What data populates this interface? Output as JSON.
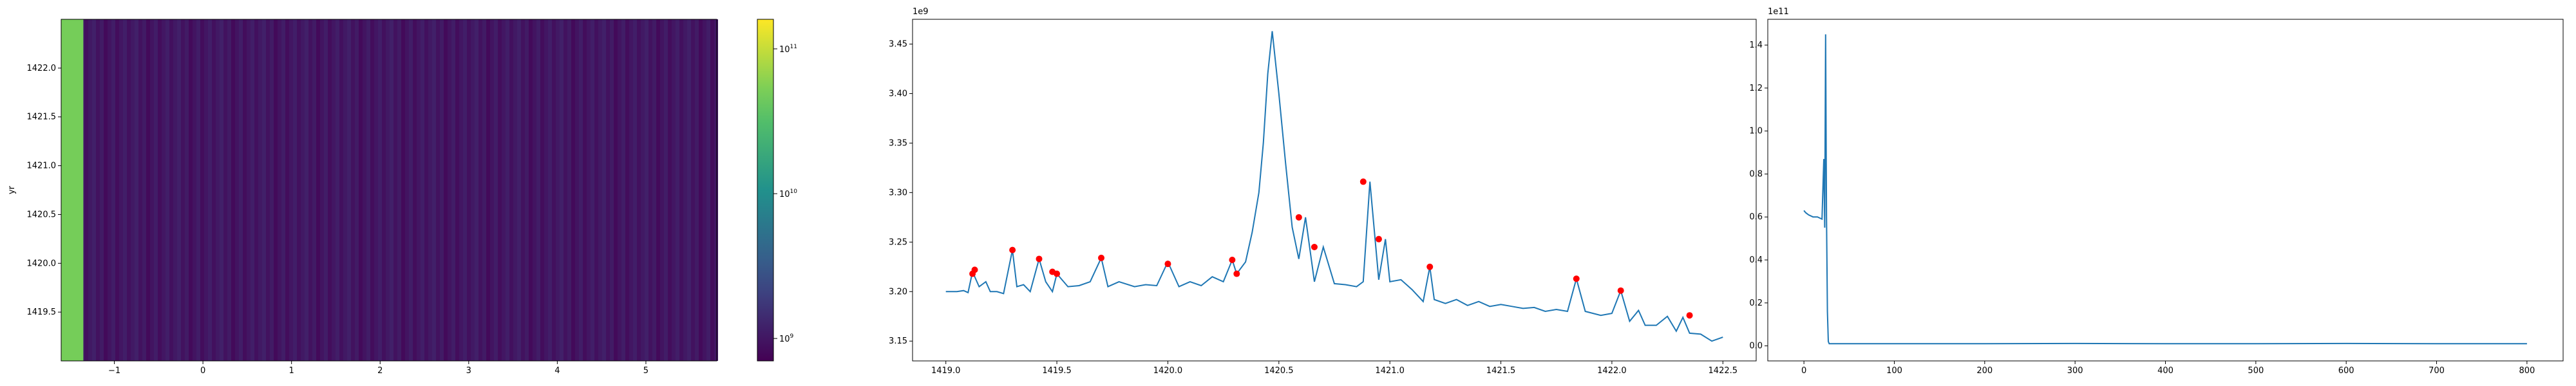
{
  "chart_data": [
    {
      "type": "heatmap",
      "xlabel": "",
      "ylabel": "yr",
      "xlim": [
        -1.6,
        5.8
      ],
      "ylim": [
        1419.0,
        1422.5
      ],
      "xticks": [
        "−1",
        "0",
        "1",
        "2",
        "3",
        "4",
        "5"
      ],
      "yticks": [
        "1419.5",
        "1420.0",
        "1420.5",
        "1421.0",
        "1421.5",
        "1422.0"
      ],
      "colorbar": {
        "scale": "log",
        "range": [
          700000000.0,
          160000000000.0
        ],
        "ticks": [
          {
            "base": "10",
            "exp": "9"
          },
          {
            "base": "10",
            "exp": "10"
          },
          {
            "base": "10",
            "exp": "11"
          }
        ]
      },
      "bright_column": {
        "x_range": [
          -1.6,
          -1.35
        ],
        "value": 50000000000.0
      },
      "background_value": 1000000000.0
    },
    {
      "type": "line",
      "title": "",
      "offset_label": "1e9",
      "xlabel": "",
      "ylabel": "",
      "xlim": [
        1418.85,
        1422.65
      ],
      "ylim": [
        3.13,
        3.475
      ],
      "xticks": [
        "1419.0",
        "1419.5",
        "1420.0",
        "1420.5",
        "1421.0",
        "1421.5",
        "1422.0",
        "1422.5"
      ],
      "yticks": [
        "3.15",
        "3.20",
        "3.25",
        "3.30",
        "3.35",
        "3.40",
        "3.45"
      ],
      "series": [
        {
          "color": "#1f77b4",
          "x": [
            1419.0,
            1419.05,
            1419.08,
            1419.1,
            1419.12,
            1419.15,
            1419.18,
            1419.2,
            1419.23,
            1419.26,
            1419.3,
            1419.32,
            1419.35,
            1419.38,
            1419.42,
            1419.45,
            1419.48,
            1419.5,
            1419.55,
            1419.6,
            1419.65,
            1419.7,
            1419.73,
            1419.78,
            1419.85,
            1419.9,
            1419.95,
            1420.0,
            1420.05,
            1420.1,
            1420.15,
            1420.2,
            1420.25,
            1420.29,
            1420.31,
            1420.35,
            1420.38,
            1420.41,
            1420.43,
            1420.45,
            1420.47,
            1420.5,
            1420.53,
            1420.56,
            1420.59,
            1420.62,
            1420.66,
            1420.7,
            1420.75,
            1420.8,
            1420.85,
            1420.88,
            1420.91,
            1420.95,
            1420.98,
            1421.0,
            1421.05,
            1421.1,
            1421.15,
            1421.18,
            1421.2,
            1421.25,
            1421.3,
            1421.35,
            1421.4,
            1421.45,
            1421.5,
            1421.55,
            1421.6,
            1421.65,
            1421.7,
            1421.75,
            1421.8,
            1421.84,
            1421.88,
            1421.95,
            1422.0,
            1422.04,
            1422.08,
            1422.12,
            1422.15,
            1422.2,
            1422.25,
            1422.29,
            1422.32,
            1422.35,
            1422.4,
            1422.45,
            1422.5
          ],
          "y": [
            3.2,
            3.2,
            3.201,
            3.199,
            3.22,
            3.205,
            3.21,
            3.2,
            3.2,
            3.198,
            3.242,
            3.205,
            3.207,
            3.2,
            3.233,
            3.21,
            3.2,
            3.218,
            3.205,
            3.206,
            3.21,
            3.234,
            3.205,
            3.21,
            3.205,
            3.207,
            3.206,
            3.23,
            3.205,
            3.21,
            3.206,
            3.215,
            3.21,
            3.232,
            3.218,
            3.23,
            3.26,
            3.3,
            3.35,
            3.42,
            3.463,
            3.4,
            3.33,
            3.265,
            3.233,
            3.275,
            3.21,
            3.245,
            3.208,
            3.207,
            3.205,
            3.21,
            3.311,
            3.212,
            3.253,
            3.21,
            3.212,
            3.202,
            3.19,
            3.225,
            3.192,
            3.188,
            3.192,
            3.186,
            3.19,
            3.185,
            3.187,
            3.185,
            3.183,
            3.184,
            3.18,
            3.182,
            3.18,
            3.213,
            3.18,
            3.176,
            3.178,
            3.201,
            3.17,
            3.181,
            3.166,
            3.166,
            3.175,
            3.16,
            3.174,
            3.158,
            3.157,
            3.15,
            3.154
          ]
        }
      ],
      "peaks": {
        "color": "#ff0000",
        "x": [
          1419.12,
          1419.13,
          1419.3,
          1419.42,
          1419.48,
          1419.5,
          1419.7,
          1420.0,
          1420.29,
          1420.31,
          1420.59,
          1420.66,
          1420.88,
          1420.95,
          1421.18,
          1421.84,
          1422.04,
          1422.35
        ],
        "y": [
          3.218,
          3.222,
          3.242,
          3.233,
          3.22,
          3.218,
          3.234,
          3.228,
          3.232,
          3.218,
          3.275,
          3.245,
          3.311,
          3.253,
          3.225,
          3.213,
          3.201,
          3.176
        ]
      }
    },
    {
      "type": "line",
      "title": "",
      "offset_label": "1e11",
      "xlabel": "",
      "ylabel": "",
      "xlim": [
        -40,
        840
      ],
      "ylim": [
        -0.07,
        1.52
      ],
      "xticks": [
        "0",
        "100",
        "200",
        "300",
        "400",
        "500",
        "600",
        "700",
        "800"
      ],
      "yticks": [
        "0.0",
        "0.2",
        "0.4",
        "0.6",
        "0.8",
        "1.0",
        "1.2",
        "1.4"
      ],
      "series": [
        {
          "color": "#1f77b4",
          "x": [
            0,
            2,
            5,
            10,
            15,
            20,
            22,
            23,
            24,
            25,
            26,
            27,
            28,
            30,
            35,
            100,
            200,
            300,
            400,
            500,
            600,
            700,
            800
          ],
          "y": [
            0.63,
            0.62,
            0.61,
            0.6,
            0.6,
            0.59,
            0.87,
            0.55,
            1.45,
            0.6,
            0.16,
            0.02,
            0.01,
            0.01,
            0.01,
            0.01,
            0.01,
            0.011,
            0.01,
            0.01,
            0.011,
            0.01,
            0.01
          ]
        }
      ]
    }
  ]
}
